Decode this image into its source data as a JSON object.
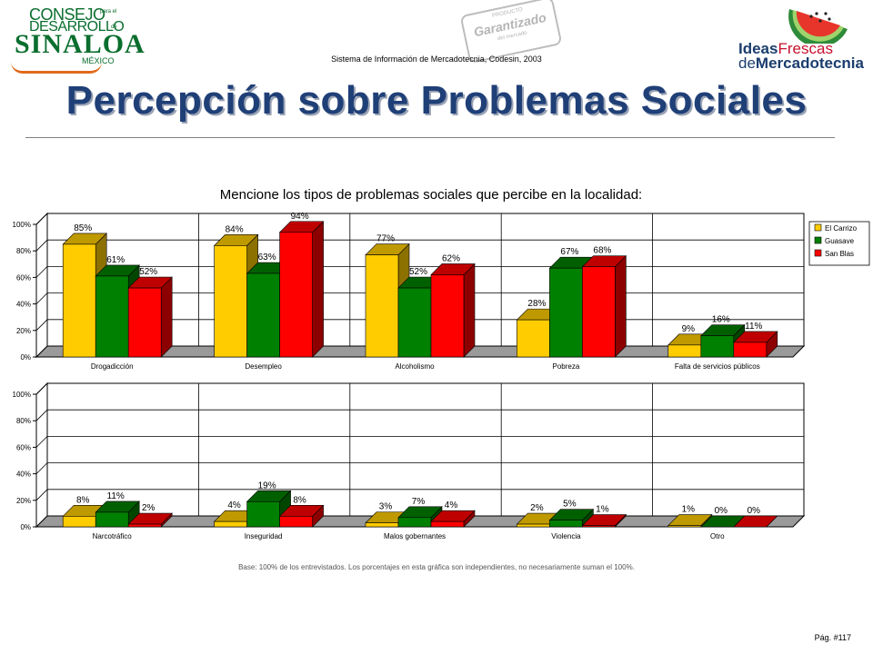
{
  "header": {
    "logo_left": {
      "line1": "CONSEJO",
      "line1_small": "para el",
      "line2": "DESARROLLO",
      "line2_small": "de",
      "line3": "SINALOA",
      "line4": "MÉXICO"
    },
    "stamp": {
      "top": "PRODUCTO",
      "main": "Garantizado",
      "bottom": "del mercado"
    },
    "system_line": "Sistema de Información de Mercadotecnia, Codesin, 2003",
    "logo_right": {
      "l1_bold": "Ideas",
      "l1_light": "Frescas",
      "l2_light": "de",
      "l2_bold": "Mercadotecnia"
    }
  },
  "page": {
    "title": "Percepción sobre Problemas Sociales",
    "footnote": "Base: 100% de los entrevistados. Los porcentajes en esta gráfica son independientes, no necesariamente suman el 100%.",
    "page_number": "Pág. #117"
  },
  "chart_data": [
    {
      "type": "bar",
      "title": "Mencione los tipos de problemas sociales que percibe en la localidad:",
      "categories": [
        "Drogadicción",
        "Desempleo",
        "Alcoholismo",
        "Pobreza",
        "Falta de servicios públicos"
      ],
      "series": [
        {
          "name": "El Carrizo",
          "values": [
            85,
            84,
            77,
            28,
            9
          ],
          "labels": [
            "85%",
            "84%",
            "77%",
            "28%",
            "9%"
          ],
          "color": "#FFCC00"
        },
        {
          "name": "Guasave",
          "values": [
            61,
            63,
            52,
            67,
            16
          ],
          "labels": [
            "61%",
            "63%",
            "52%",
            "67%",
            "16%"
          ],
          "color": "#008000"
        },
        {
          "name": "San Blas",
          "values": [
            52,
            94,
            62,
            68,
            11
          ],
          "labels": [
            "52%",
            "94%",
            "62%",
            "68%",
            "11%"
          ],
          "color": "#FF0000"
        }
      ],
      "yticks": [
        "0%",
        "20%",
        "40%",
        "60%",
        "80%",
        "100%"
      ],
      "ylim": [
        0,
        100
      ],
      "grid": true,
      "legend": "right",
      "three_d": true
    },
    {
      "type": "bar",
      "title": "",
      "categories": [
        "Narcotráfico",
        "Inseguridad",
        "Malos gobernantes",
        "Violencia",
        "Otro"
      ],
      "series": [
        {
          "name": "El Carrizo",
          "values": [
            8,
            4,
            3,
            2,
            1
          ],
          "labels": [
            "8%",
            "4%",
            "3%",
            "2%",
            "1%"
          ],
          "color": "#FFCC00"
        },
        {
          "name": "Guasave",
          "values": [
            11,
            19,
            7,
            5,
            0
          ],
          "labels": [
            "11%",
            "19%",
            "7%",
            "5%",
            "0%"
          ],
          "color": "#008000"
        },
        {
          "name": "San Blas",
          "values": [
            2,
            8,
            4,
            1,
            0
          ],
          "labels": [
            "2%",
            "8%",
            "4%",
            "1%",
            "0%"
          ],
          "color": "#FF0000"
        }
      ],
      "yticks": [
        "0%",
        "20%",
        "40%",
        "60%",
        "80%",
        "100%"
      ],
      "ylim": [
        0,
        100
      ],
      "grid": true,
      "legend": "none",
      "three_d": true
    }
  ]
}
